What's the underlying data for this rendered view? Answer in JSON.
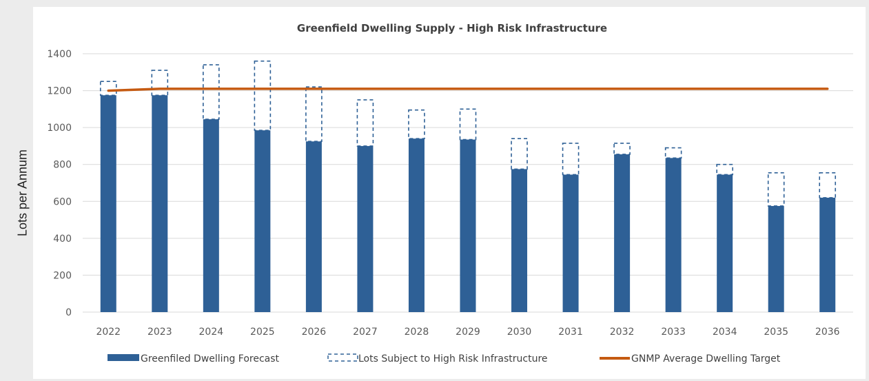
{
  "outer_label": "Lots per Annum",
  "chart_data": {
    "type": "bar",
    "title": "Greenfield Dwelling Supply - High Risk Infrastructure",
    "xlabel": "",
    "ylabel": "Lots per Annum",
    "ylim": [
      0,
      1400
    ],
    "yticks": [
      0,
      200,
      400,
      600,
      800,
      1000,
      1200,
      1400
    ],
    "grid": true,
    "legend_position": "bottom",
    "categories": [
      "2022",
      "2023",
      "2024",
      "2025",
      "2026",
      "2027",
      "2028",
      "2029",
      "2030",
      "2031",
      "2032",
      "2033",
      "2034",
      "2035",
      "2036"
    ],
    "series": [
      {
        "name": "Greenfiled Dwelling Forecast",
        "kind": "bar",
        "color": "#2e6096",
        "values": [
          1175,
          1175,
          1045,
          985,
          925,
          900,
          940,
          935,
          775,
          745,
          855,
          835,
          745,
          575,
          620
        ]
      },
      {
        "name": "Lots Subject to High Risk Infrastructure",
        "kind": "stacked-dashed-bar",
        "color": "#2e6096",
        "values": [
          75,
          135,
          295,
          375,
          295,
          250,
          155,
          165,
          165,
          170,
          60,
          55,
          55,
          180,
          135
        ]
      },
      {
        "name": "GNMP Average Dwelling Target",
        "kind": "line",
        "color": "#c55a11",
        "values": [
          1200,
          1210,
          1210,
          1210,
          1210,
          1210,
          1210,
          1210,
          1210,
          1210,
          1210,
          1210,
          1210,
          1210,
          1210
        ]
      }
    ]
  }
}
